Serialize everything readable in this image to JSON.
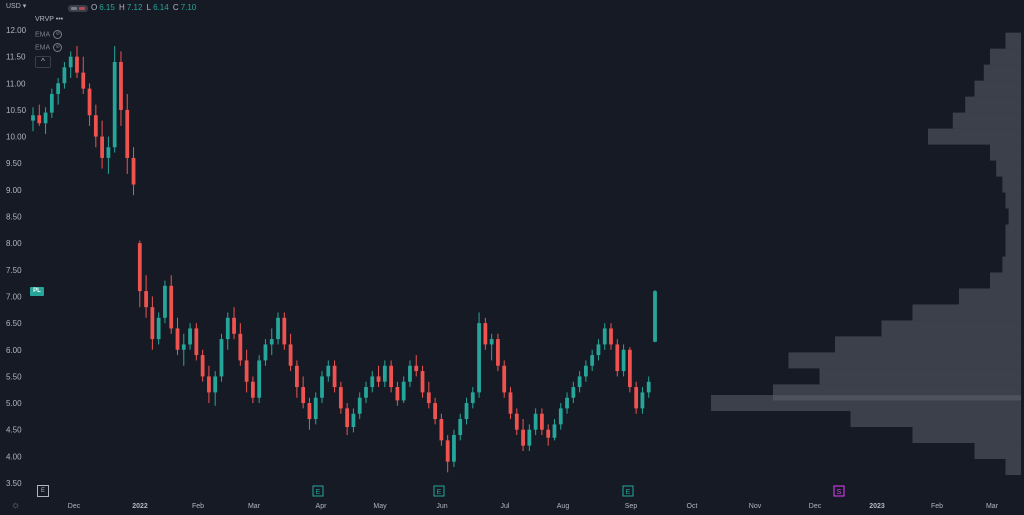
{
  "header": {
    "currency": "USD",
    "ohlc": [
      {
        "key": "O",
        "value": "6.15"
      },
      {
        "key": "H",
        "value": "7.12"
      },
      {
        "key": "L",
        "value": "6.14"
      },
      {
        "key": "C",
        "value": "7.10"
      }
    ]
  },
  "indicators": [
    {
      "label": "VRVP",
      "extra": "•••"
    },
    {
      "label": "EMA",
      "extra": ""
    },
    {
      "label": "EMA",
      "extra": ""
    }
  ],
  "pl_label": "PL",
  "earnings_marker": "E",
  "dividend_marker": "S",
  "colors": {
    "background": "#161a25",
    "up": "#26a69a",
    "down": "#ef5350",
    "volume_profile": "#5d606b",
    "text": "#b2b5be"
  },
  "chart_data": {
    "type": "candlestick",
    "ylim": [
      3.5,
      12.0
    ],
    "y_ticks": [
      "12.00",
      "11.50",
      "11.00",
      "10.50",
      "10.00",
      "9.50",
      "9.00",
      "8.50",
      "8.00",
      "7.50",
      "7.00",
      "6.50",
      "6.00",
      "5.50",
      "5.00",
      "4.50",
      "4.00",
      "3.50"
    ],
    "x_ticks": [
      "Dec",
      "2022",
      "Feb",
      "Mar",
      "Apr",
      "May",
      "Jun",
      "Jul",
      "Aug",
      "Sep",
      "Oct",
      "Nov",
      "Dec",
      "2023",
      "Feb",
      "Mar"
    ],
    "x_tick_index": [
      0,
      1,
      2,
      3,
      4,
      5,
      6,
      7,
      8,
      9,
      10,
      11,
      12,
      13,
      14,
      15
    ],
    "earnings_dates": [
      4,
      6,
      9
    ],
    "dividend_date": 12,
    "candles": [
      [
        10.3,
        10.55,
        10.1,
        10.4
      ],
      [
        10.4,
        10.6,
        10.2,
        10.25
      ],
      [
        10.25,
        10.55,
        10.05,
        10.45
      ],
      [
        10.45,
        10.9,
        10.35,
        10.8
      ],
      [
        10.8,
        11.1,
        10.6,
        11.0
      ],
      [
        11.0,
        11.4,
        10.9,
        11.3
      ],
      [
        11.3,
        11.6,
        11.1,
        11.5
      ],
      [
        11.5,
        11.7,
        11.1,
        11.2
      ],
      [
        11.2,
        11.5,
        10.8,
        10.9
      ],
      [
        10.9,
        11.0,
        10.2,
        10.4
      ],
      [
        10.4,
        10.6,
        9.8,
        10.0
      ],
      [
        10.0,
        10.3,
        9.4,
        9.6
      ],
      [
        9.6,
        10.0,
        9.3,
        9.8
      ],
      [
        9.8,
        11.7,
        9.7,
        11.4
      ],
      [
        11.4,
        11.6,
        10.2,
        10.5
      ],
      [
        10.5,
        10.8,
        9.3,
        9.6
      ],
      [
        9.6,
        9.8,
        8.9,
        9.1
      ],
      [
        8.0,
        8.05,
        6.8,
        7.1
      ],
      [
        7.1,
        7.4,
        6.6,
        6.8
      ],
      [
        6.8,
        7.0,
        6.0,
        6.2
      ],
      [
        6.2,
        6.7,
        6.1,
        6.6
      ],
      [
        6.6,
        7.3,
        6.5,
        7.2
      ],
      [
        7.2,
        7.4,
        6.3,
        6.4
      ],
      [
        6.4,
        6.6,
        5.9,
        6.0
      ],
      [
        6.0,
        6.3,
        5.7,
        6.1
      ],
      [
        6.1,
        6.5,
        6.0,
        6.4
      ],
      [
        6.4,
        6.5,
        5.8,
        5.9
      ],
      [
        5.9,
        6.0,
        5.4,
        5.5
      ],
      [
        5.5,
        5.7,
        5.0,
        5.2
      ],
      [
        5.2,
        5.6,
        4.95,
        5.5
      ],
      [
        5.5,
        6.3,
        5.4,
        6.2
      ],
      [
        6.2,
        6.7,
        6.0,
        6.6
      ],
      [
        6.6,
        6.8,
        6.2,
        6.3
      ],
      [
        6.3,
        6.5,
        5.7,
        5.8
      ],
      [
        5.8,
        6.0,
        5.2,
        5.4
      ],
      [
        5.4,
        5.5,
        5.0,
        5.1
      ],
      [
        5.1,
        5.9,
        5.0,
        5.8
      ],
      [
        5.8,
        6.2,
        5.7,
        6.1
      ],
      [
        6.1,
        6.4,
        5.9,
        6.2
      ],
      [
        6.2,
        6.7,
        6.1,
        6.6
      ],
      [
        6.6,
        6.7,
        6.0,
        6.1
      ],
      [
        6.1,
        6.3,
        5.6,
        5.7
      ],
      [
        5.7,
        5.8,
        5.1,
        5.3
      ],
      [
        5.3,
        5.5,
        4.9,
        5.0
      ],
      [
        5.0,
        5.1,
        4.5,
        4.7
      ],
      [
        4.7,
        5.2,
        4.6,
        5.1
      ],
      [
        5.1,
        5.6,
        5.0,
        5.5
      ],
      [
        5.5,
        5.8,
        5.4,
        5.7
      ],
      [
        5.7,
        5.8,
        5.2,
        5.3
      ],
      [
        5.3,
        5.4,
        4.8,
        4.9
      ],
      [
        4.9,
        5.0,
        4.4,
        4.55
      ],
      [
        4.55,
        4.9,
        4.45,
        4.8
      ],
      [
        4.8,
        5.2,
        4.7,
        5.1
      ],
      [
        5.1,
        5.4,
        5.0,
        5.3
      ],
      [
        5.3,
        5.6,
        5.2,
        5.5
      ],
      [
        5.5,
        5.7,
        5.3,
        5.4
      ],
      [
        5.4,
        5.8,
        5.3,
        5.7
      ],
      [
        5.7,
        5.8,
        5.2,
        5.3
      ],
      [
        5.3,
        5.4,
        4.95,
        5.05
      ],
      [
        5.05,
        5.5,
        5.0,
        5.4
      ],
      [
        5.4,
        5.8,
        5.3,
        5.7
      ],
      [
        5.7,
        5.9,
        5.5,
        5.6
      ],
      [
        5.6,
        5.7,
        5.1,
        5.2
      ],
      [
        5.2,
        5.4,
        4.9,
        5.0
      ],
      [
        5.0,
        5.1,
        4.6,
        4.7
      ],
      [
        4.7,
        4.8,
        4.2,
        4.3
      ],
      [
        4.3,
        4.4,
        3.7,
        3.9
      ],
      [
        3.9,
        4.5,
        3.8,
        4.4
      ],
      [
        4.4,
        4.8,
        4.3,
        4.7
      ],
      [
        4.7,
        5.1,
        4.6,
        5.0
      ],
      [
        5.0,
        5.3,
        4.9,
        5.2
      ],
      [
        5.2,
        6.7,
        5.1,
        6.5
      ],
      [
        6.5,
        6.6,
        6.0,
        6.1
      ],
      [
        6.1,
        6.3,
        5.8,
        6.2
      ],
      [
        6.2,
        6.3,
        5.6,
        5.7
      ],
      [
        5.7,
        5.8,
        5.1,
        5.2
      ],
      [
        5.2,
        5.3,
        4.7,
        4.8
      ],
      [
        4.8,
        4.9,
        4.4,
        4.5
      ],
      [
        4.5,
        4.7,
        4.1,
        4.2
      ],
      [
        4.2,
        4.6,
        4.1,
        4.5
      ],
      [
        4.5,
        4.9,
        4.4,
        4.8
      ],
      [
        4.8,
        4.9,
        4.4,
        4.5
      ],
      [
        4.5,
        4.6,
        4.2,
        4.35
      ],
      [
        4.35,
        4.7,
        4.3,
        4.6
      ],
      [
        4.6,
        5.0,
        4.5,
        4.9
      ],
      [
        4.9,
        5.2,
        4.8,
        5.1
      ],
      [
        5.1,
        5.4,
        5.0,
        5.3
      ],
      [
        5.3,
        5.6,
        5.2,
        5.5
      ],
      [
        5.5,
        5.8,
        5.4,
        5.7
      ],
      [
        5.7,
        6.0,
        5.6,
        5.9
      ],
      [
        5.9,
        6.2,
        5.8,
        6.1
      ],
      [
        6.1,
        6.5,
        6.0,
        6.4
      ],
      [
        6.4,
        6.5,
        6.0,
        6.1
      ],
      [
        6.1,
        6.2,
        5.5,
        5.6
      ],
      [
        5.6,
        6.1,
        5.5,
        6.0
      ],
      [
        6.0,
        6.05,
        5.2,
        5.3
      ],
      [
        5.3,
        5.4,
        4.8,
        4.9
      ],
      [
        4.9,
        5.3,
        4.8,
        5.2
      ],
      [
        5.2,
        5.5,
        5.1,
        5.4
      ],
      [
        6.15,
        7.12,
        6.14,
        7.1
      ]
    ],
    "volume_profile": {
      "prices": [
        11.8,
        11.5,
        11.2,
        10.9,
        10.6,
        10.3,
        10.0,
        9.7,
        9.4,
        9.1,
        8.8,
        8.5,
        8.2,
        7.9,
        7.6,
        7.3,
        7.0,
        6.7,
        6.4,
        6.1,
        5.8,
        5.5,
        5.2,
        5.0,
        4.7,
        4.4,
        4.1,
        3.8
      ],
      "volumes": [
        0.05,
        0.1,
        0.12,
        0.15,
        0.18,
        0.22,
        0.3,
        0.1,
        0.08,
        0.06,
        0.05,
        0.04,
        0.05,
        0.05,
        0.06,
        0.1,
        0.2,
        0.35,
        0.45,
        0.6,
        0.75,
        0.65,
        0.8,
        1.0,
        0.55,
        0.35,
        0.15,
        0.05
      ]
    }
  }
}
